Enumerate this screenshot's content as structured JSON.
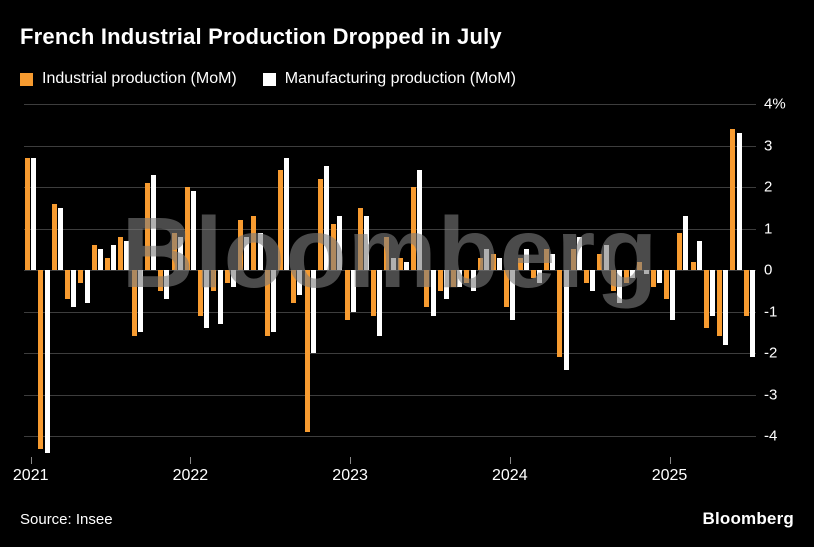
{
  "header": {
    "title": "French Industrial Production Dropped in July",
    "legend": [
      {
        "label": "Industrial production (MoM)",
        "color": "#f79b30"
      },
      {
        "label": "Manufacturing production (MoM)",
        "color": "#ffffff"
      }
    ]
  },
  "watermark": "Bloomberg",
  "footer": {
    "source": "Source: Insee",
    "brand": "Bloomberg"
  },
  "colors": {
    "background": "#000000",
    "gridline": "#3d3d3d",
    "text": "#ffffff",
    "industrial": "#f79b30",
    "manufacturing": "#ffffff"
  },
  "chart_data": {
    "type": "bar",
    "title": "French Industrial Production Dropped in July",
    "xlabel": "",
    "ylabel": "%",
    "ylim": [
      -4.5,
      4
    ],
    "grid": true,
    "legend_position": "top",
    "yticks": [
      4,
      3,
      2,
      1,
      0,
      -1,
      -2,
      -3,
      -4
    ],
    "ytick_labels": [
      "4%",
      "3",
      "2",
      "1",
      "0",
      "-1",
      "-2",
      "-3",
      "-4"
    ],
    "xtick_labels": [
      "2021",
      "2022",
      "2023",
      "2024",
      "2025"
    ],
    "xtick_month_indices": [
      0,
      12,
      24,
      36,
      48
    ],
    "categories": [
      "2021-01",
      "2021-02",
      "2021-03",
      "2021-04",
      "2021-05",
      "2021-06",
      "2021-07",
      "2021-08",
      "2021-09",
      "2021-10",
      "2021-11",
      "2021-12",
      "2022-01",
      "2022-02",
      "2022-03",
      "2022-04",
      "2022-05",
      "2022-06",
      "2022-07",
      "2022-08",
      "2022-09",
      "2022-10",
      "2022-11",
      "2022-12",
      "2023-01",
      "2023-02",
      "2023-03",
      "2023-04",
      "2023-05",
      "2023-06",
      "2023-07",
      "2023-08",
      "2023-09",
      "2023-10",
      "2023-11",
      "2023-12",
      "2024-01",
      "2024-02",
      "2024-03",
      "2024-04",
      "2024-05",
      "2024-06",
      "2024-07",
      "2024-08",
      "2024-09",
      "2024-10",
      "2024-11",
      "2024-12",
      "2025-01",
      "2025-02",
      "2025-03",
      "2025-04",
      "2025-05",
      "2025-06",
      "2025-07"
    ],
    "series": [
      {
        "name": "Industrial production (MoM)",
        "color": "#f79b30",
        "values": [
          2.7,
          -4.3,
          1.6,
          -0.7,
          -0.3,
          0.6,
          0.3,
          0.8,
          -1.6,
          2.1,
          -0.5,
          0.9,
          2.0,
          -1.1,
          -0.5,
          -0.3,
          1.2,
          1.3,
          -1.6,
          2.4,
          -0.8,
          -3.9,
          2.2,
          1.1,
          -1.2,
          1.5,
          -1.1,
          0.8,
          0.3,
          2.0,
          -0.9,
          -0.5,
          -0.4,
          -0.3,
          0.3,
          0.4,
          -0.9,
          0.3,
          -0.2,
          0.5,
          -2.1,
          0.5,
          -0.3,
          0.4,
          -0.5,
          -0.3,
          0.2,
          -0.4,
          -0.7,
          0.9,
          0.2,
          -1.4,
          -1.6,
          3.4,
          -1.1
        ]
      },
      {
        "name": "Manufacturing production (MoM)",
        "color": "#ffffff",
        "values": [
          2.7,
          -4.4,
          1.5,
          -0.9,
          -0.8,
          0.5,
          0.6,
          0.7,
          -1.5,
          2.3,
          -0.7,
          0.8,
          1.9,
          -1.4,
          -1.3,
          -0.4,
          0.8,
          0.9,
          -1.5,
          2.7,
          -0.6,
          -2.0,
          2.5,
          1.3,
          -1.0,
          1.3,
          -1.6,
          0.3,
          0.2,
          2.4,
          -1.1,
          -0.7,
          -0.4,
          -0.5,
          0.5,
          0.3,
          -1.2,
          0.5,
          -0.3,
          0.4,
          -2.4,
          0.8,
          -0.5,
          0.6,
          -0.8,
          -0.2,
          -0.1,
          -0.3,
          -1.2,
          1.3,
          0.7,
          -1.1,
          -1.8,
          3.3,
          -2.1
        ]
      }
    ]
  }
}
